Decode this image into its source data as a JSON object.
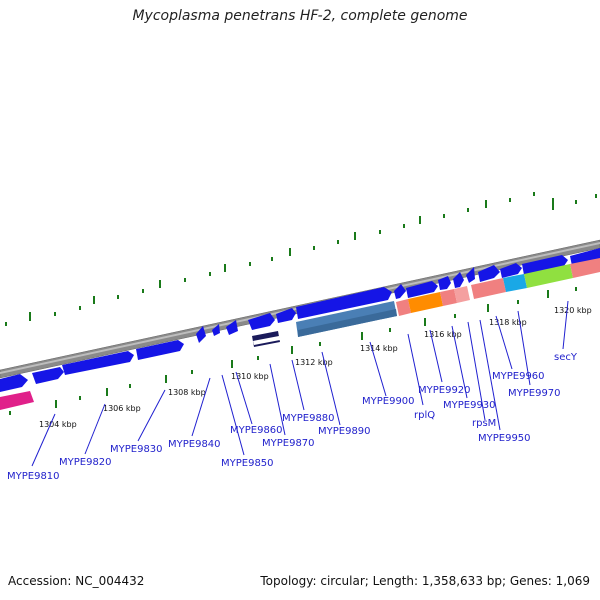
{
  "title": "Mycoplasma penetrans HF-2, complete genome",
  "footer": {
    "accession": "Accession: NC_004432",
    "stats": "Topology: circular; Length: 1,358,633 bp; Genes: 1,069"
  },
  "colors": {
    "gene_arrow": "#1515e6",
    "backbone": "#888888",
    "tick": "#1a7a1a",
    "label": "#2222cc"
  },
  "kbp_labels": [
    "1304 kbp",
    "1306 kbp",
    "1308 kbp",
    "1310 kbp",
    "1312 kbp",
    "1314 kbp",
    "1316 kbp",
    "1318 kbp",
    "1320 kbp"
  ],
  "gene_labels": [
    "MYPE9810",
    "MYPE9820",
    "MYPE9830",
    "MYPE9840",
    "MYPE9850",
    "MYPE9860",
    "MYPE9870",
    "MYPE9880",
    "MYPE9890",
    "MYPE9900",
    "rplQ",
    "MYPE9920",
    "MYPE9930",
    "rpsM",
    "MYPE9950",
    "MYPE9960",
    "MYPE9970",
    "secY"
  ]
}
